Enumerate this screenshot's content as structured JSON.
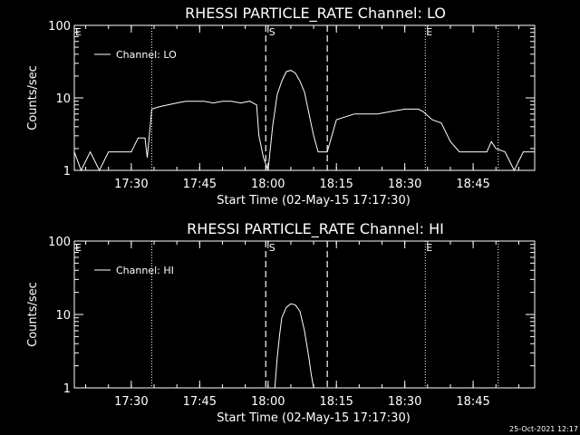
{
  "chart_data": [
    {
      "type": "line",
      "title": "RHESSI PARTICLE_RATE Channel: LO",
      "xlabel": "Start Time (02-May-15 17:17:30)",
      "ylabel": "Counts/sec",
      "y_scale": "log",
      "ylim": [
        1,
        100
      ],
      "xlim": [
        "17:17:30",
        "18:58:30"
      ],
      "x_ticks": [
        "17:30",
        "17:45",
        "18:00",
        "18:15",
        "18:30",
        "18:45"
      ],
      "y_ticks": [
        "1",
        "10",
        "100"
      ],
      "legend": "top-left",
      "grid": false,
      "series": [
        {
          "name": "Channel: LO",
          "x": [
            "17:17:30",
            "17:19:00",
            "17:21:00",
            "17:23:00",
            "17:25:00",
            "17:27:00",
            "17:28:30",
            "17:30:00",
            "17:31:30",
            "17:33:00",
            "17:33:30",
            "17:34:30",
            "17:36:00",
            "17:38:00",
            "17:40:00",
            "17:42:00",
            "17:44:00",
            "17:46:00",
            "17:48:00",
            "17:50:00",
            "17:52:00",
            "17:54:00",
            "17:56:00",
            "17:57:30",
            "17:58:00",
            "17:59:00",
            "18:00:00",
            "18:01:00",
            "18:02:00",
            "18:03:00",
            "18:04:00",
            "18:05:00",
            "18:06:00",
            "18:07:00",
            "18:08:00",
            "18:09:00",
            "18:10:00",
            "18:11:00",
            "18:12:00",
            "18:13:00",
            "18:14:00",
            "18:15:00",
            "18:17:00",
            "18:19:00",
            "18:21:00",
            "18:24:00",
            "18:27:00",
            "18:30:00",
            "18:33:00",
            "18:34:00",
            "18:36:00",
            "18:38:00",
            "18:40:00",
            "18:42:00",
            "18:44:00",
            "18:46:00",
            "18:48:00",
            "18:49:00",
            "18:50:00",
            "18:52:00",
            "18:54:00",
            "18:56:00",
            "18:58:30"
          ],
          "values": [
            1.8,
            1.0,
            1.8,
            1.0,
            1.8,
            1.8,
            1.8,
            1.8,
            2.8,
            2.8,
            1.5,
            7.0,
            7.5,
            8.0,
            8.5,
            9.0,
            9.0,
            9.0,
            8.5,
            9.0,
            9.0,
            8.5,
            9.0,
            8.0,
            3.0,
            1.5,
            1.0,
            4.0,
            11.0,
            17.0,
            23.0,
            24.0,
            22.0,
            17.0,
            12.0,
            6.0,
            3.0,
            1.8,
            1.8,
            1.8,
            3.0,
            5.0,
            5.5,
            6.0,
            6.0,
            6.0,
            6.5,
            7.0,
            7.0,
            6.5,
            5.0,
            4.5,
            2.5,
            1.8,
            1.8,
            1.8,
            1.8,
            2.5,
            2.0,
            1.8,
            1.0,
            1.8,
            1.8
          ]
        }
      ],
      "annotations": [
        {
          "text": "E",
          "x": "17:17:30"
        },
        {
          "text": "S",
          "x": "18:00:00"
        },
        {
          "text": "E",
          "x": "18:34:30"
        }
      ],
      "markers": {
        "dotted": [
          "17:34:30",
          "18:34:30",
          "18:50:30"
        ],
        "dashed": [
          "17:59:30",
          "18:13:00"
        ]
      }
    },
    {
      "type": "line",
      "title": "RHESSI PARTICLE_RATE Channel: HI",
      "xlabel": "Start Time (02-May-15 17:17:30)",
      "ylabel": "Counts/sec",
      "y_scale": "log",
      "ylim": [
        1,
        100
      ],
      "xlim": [
        "17:17:30",
        "18:58:30"
      ],
      "x_ticks": [
        "17:30",
        "17:45",
        "18:00",
        "18:15",
        "18:30",
        "18:45"
      ],
      "y_ticks": [
        "1",
        "10",
        "100"
      ],
      "legend": "top-left",
      "grid": false,
      "series": [
        {
          "name": "Channel: HI",
          "x": [
            "18:01:30",
            "18:02:00",
            "18:02:30",
            "18:03:00",
            "18:04:00",
            "18:05:00",
            "18:06:00",
            "18:07:00",
            "18:08:00",
            "18:09:00",
            "18:09:30",
            "18:10:00"
          ],
          "values": [
            1.0,
            2.5,
            5.0,
            9.0,
            12.5,
            14.0,
            13.5,
            11.0,
            6.0,
            2.5,
            1.5,
            1.0
          ]
        }
      ],
      "annotations": [
        {
          "text": "E",
          "x": "17:17:30"
        },
        {
          "text": "S",
          "x": "18:00:00"
        },
        {
          "text": "E",
          "x": "18:34:30"
        }
      ],
      "markers": {
        "dotted": [
          "17:34:30",
          "18:34:30",
          "18:50:30"
        ],
        "dashed": [
          "17:59:30",
          "18:13:00"
        ]
      }
    }
  ],
  "footer": {
    "timestamp": "25-Oct-2021 12:17"
  }
}
